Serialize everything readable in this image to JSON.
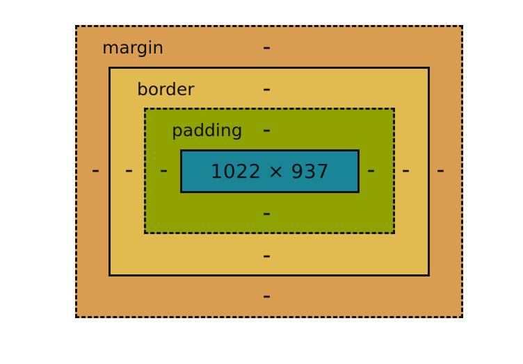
{
  "box_model": {
    "margin": {
      "label": "margin",
      "top": "–",
      "right": "–",
      "bottom": "–",
      "left": "–"
    },
    "border": {
      "label": "border",
      "top": "–",
      "right": "–",
      "bottom": "–",
      "left": "–"
    },
    "padding": {
      "label": "padding",
      "top": "–",
      "right": "–",
      "bottom": "–",
      "left": "–"
    },
    "content": {
      "size": "1022 × 937"
    }
  },
  "colors": {
    "margin": "#d99d52",
    "border": "#e1bb4f",
    "padding": "#8fa200",
    "content": "#1a8597",
    "outline": "#111111"
  }
}
